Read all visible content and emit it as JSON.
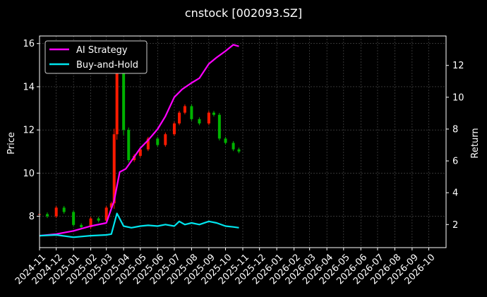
{
  "chart_data": {
    "type": "line",
    "title": "cnstock [002093.SZ]",
    "xlabel": "",
    "ylabel": "Price",
    "y2label": "Return",
    "ylim": [
      6.55,
      16.35
    ],
    "y2lim": [
      0.55,
      13.85
    ],
    "yticks": [
      8,
      10,
      12,
      14,
      16
    ],
    "y2ticks": [
      2,
      4,
      6,
      8,
      10,
      12
    ],
    "xlim": [
      "2024-11-01",
      "2026-11-01"
    ],
    "xticks": [
      "2024-11",
      "2024-12",
      "2025-01",
      "2025-02",
      "2025-03",
      "2025-04",
      "2025-05",
      "2025-06",
      "2025-07",
      "2025-08",
      "2025-09",
      "2025-10",
      "2025-11",
      "2025-12",
      "2026-01",
      "2026-02",
      "2026-03",
      "2026-04",
      "2026-05",
      "2026-06",
      "2026-07",
      "2026-08",
      "2026-09",
      "2026-10"
    ],
    "grid": true,
    "legend_position": "top-left",
    "background": "#000000",
    "colors": {
      "ai": "#ff00ff",
      "bh": "#00e5ee",
      "up": "#ff1a00",
      "down": "#00b300"
    },
    "price": {
      "x": [
        "2024-11-01",
        "2024-11-15",
        "2024-12-01",
        "2024-12-15",
        "2025-01-01",
        "2025-01-15",
        "2025-02-01",
        "2025-02-15",
        "2025-03-01",
        "2025-03-10",
        "2025-03-15",
        "2025-03-20",
        "2025-04-01",
        "2025-04-10",
        "2025-04-20",
        "2025-05-01",
        "2025-05-15",
        "2025-06-01",
        "2025-06-15",
        "2025-07-01",
        "2025-07-10",
        "2025-07-20",
        "2025-08-01",
        "2025-08-15",
        "2025-09-01",
        "2025-09-10",
        "2025-09-20",
        "2025-10-01",
        "2025-10-15",
        "2025-10-25"
      ],
      "close": [
        8.1,
        8.0,
        8.4,
        8.2,
        7.6,
        7.5,
        7.9,
        7.8,
        8.4,
        8.6,
        11.8,
        15.0,
        12.0,
        10.6,
        10.8,
        11.1,
        11.6,
        11.3,
        11.8,
        12.3,
        12.8,
        13.1,
        12.5,
        12.3,
        12.8,
        12.7,
        11.6,
        11.4,
        11.1,
        11.0
      ]
    },
    "series": [
      {
        "name": "AI Strategy",
        "x": [
          "2024-11-01",
          "2024-12-01",
          "2025-01-01",
          "2025-02-01",
          "2025-03-01",
          "2025-03-15",
          "2025-03-25",
          "2025-04-05",
          "2025-04-15",
          "2025-05-01",
          "2025-05-15",
          "2025-06-01",
          "2025-06-15",
          "2025-07-01",
          "2025-07-15",
          "2025-08-01",
          "2025-08-15",
          "2025-09-01",
          "2025-09-15",
          "2025-10-01",
          "2025-10-15",
          "2025-10-25"
        ],
        "values": [
          1.3,
          1.4,
          1.6,
          1.9,
          2.1,
          3.5,
          5.3,
          5.5,
          6.0,
          6.8,
          7.3,
          8.0,
          8.8,
          10.0,
          10.5,
          10.9,
          11.2,
          12.1,
          12.5,
          12.9,
          13.3,
          13.2
        ]
      },
      {
        "name": "Buy-and-Hold",
        "x": [
          "2024-11-01",
          "2024-12-01",
          "2025-01-01",
          "2025-02-01",
          "2025-03-01",
          "2025-03-10",
          "2025-03-20",
          "2025-04-01",
          "2025-04-15",
          "2025-05-01",
          "2025-05-15",
          "2025-06-01",
          "2025-06-15",
          "2025-07-01",
          "2025-07-10",
          "2025-07-20",
          "2025-08-01",
          "2025-08-15",
          "2025-09-01",
          "2025-09-15",
          "2025-10-01",
          "2025-10-15",
          "2025-10-25"
        ],
        "values": [
          1.3,
          1.35,
          1.2,
          1.3,
          1.35,
          1.4,
          2.7,
          1.9,
          1.8,
          1.9,
          1.95,
          1.9,
          2.0,
          1.9,
          2.2,
          2.0,
          2.1,
          2.0,
          2.2,
          2.1,
          1.9,
          1.85,
          1.8
        ]
      }
    ]
  }
}
